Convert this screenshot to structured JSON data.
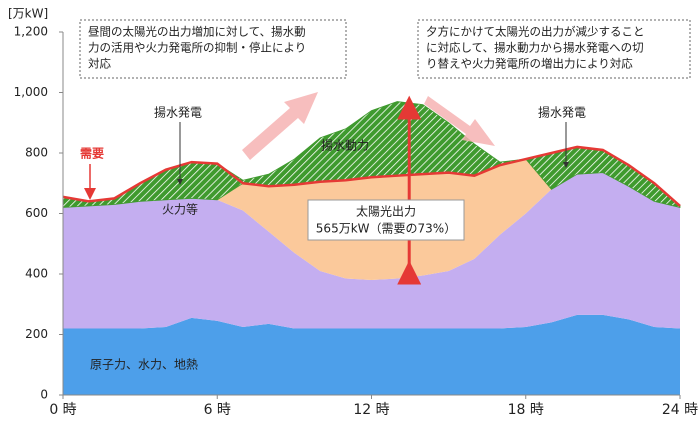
{
  "chart_data": {
    "type": "stacked_area",
    "y_label": "[万kW]",
    "x": [
      0,
      1,
      2,
      3,
      4,
      5,
      6,
      7,
      8,
      9,
      10,
      11,
      12,
      13,
      14,
      15,
      16,
      17,
      18,
      19,
      20,
      21,
      22,
      23,
      24
    ],
    "xlim": [
      0,
      24
    ],
    "xticks": [
      {
        "value": 0,
        "label": "0 時"
      },
      {
        "value": 6,
        "label": "6 時"
      },
      {
        "value": 12,
        "label": "12 時"
      },
      {
        "value": 18,
        "label": "18 時"
      },
      {
        "value": 24,
        "label": "24 時"
      }
    ],
    "ylim": [
      0,
      1200
    ],
    "yticks": [
      0,
      200,
      400,
      600,
      800,
      {
        "value": 1000,
        "label": "1,000"
      },
      {
        "value": 1200,
        "label": "1,200"
      }
    ],
    "series": [
      {
        "name": "原子力、水力、地熱",
        "color": "#4d9fea",
        "hatch": false,
        "values": [
          220,
          220,
          220,
          220,
          225,
          255,
          245,
          225,
          235,
          220,
          220,
          220,
          220,
          220,
          220,
          220,
          220,
          220,
          225,
          240,
          265,
          265,
          250,
          225,
          220
        ]
      },
      {
        "name": "火力等",
        "color": "#c4aef0",
        "hatch": false,
        "values": [
          400,
          405,
          410,
          420,
          420,
          395,
          400,
          385,
          305,
          250,
          190,
          165,
          160,
          165,
          175,
          190,
          230,
          310,
          375,
          440,
          465,
          470,
          440,
          415,
          400
        ]
      },
      {
        "name": "太陽光出力",
        "color": "#fbc99b",
        "hatch": false,
        "values": [
          0,
          0,
          0,
          0,
          0,
          0,
          0,
          90,
          150,
          225,
          295,
          325,
          340,
          340,
          335,
          325,
          275,
          230,
          180,
          0,
          0,
          0,
          0,
          0,
          0
        ]
      },
      {
        "name": "揚水発電",
        "color": "#3f9a2e",
        "hatch": true,
        "values": [
          35,
          15,
          20,
          60,
          100,
          120,
          120,
          0,
          0,
          0,
          0,
          0,
          0,
          0,
          0,
          0,
          0,
          0,
          0,
          120,
          90,
          75,
          70,
          60,
          5
        ]
      },
      {
        "name": "揚水動力",
        "color": "#3f9a2e",
        "hatch": true,
        "values": [
          0,
          0,
          0,
          0,
          0,
          0,
          0,
          10,
          40,
          85,
          145,
          170,
          220,
          245,
          230,
          165,
          105,
          10,
          0,
          0,
          0,
          0,
          0,
          0,
          0
        ]
      }
    ],
    "demand": {
      "name": "需要",
      "color": "#e53935",
      "values": [
        655,
        640,
        650,
        700,
        745,
        770,
        765,
        700,
        690,
        695,
        705,
        710,
        720,
        725,
        730,
        735,
        725,
        760,
        780,
        800,
        820,
        810,
        760,
        700,
        625
      ]
    },
    "annotations": {
      "solar_peak": "565万kW（需要の73%）",
      "box_left": [
        "昼間の太陽光の出力増加に対して、揚水動",
        "力の活用や火力発電所の抑制・停止により",
        "対応"
      ],
      "box_right": [
        "夕方にかけて太陽光の出力が減少すること",
        "に対応して、揚水動力から揚水発電への切",
        "り替えや火力発電所の増出力により対応"
      ]
    }
  }
}
